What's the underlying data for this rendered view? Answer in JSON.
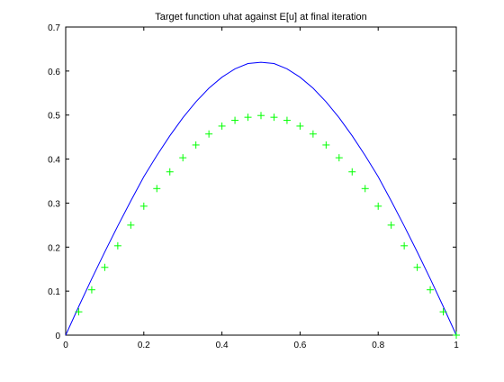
{
  "chart_data": {
    "type": "line",
    "title": "Target function uhat against E[u] at final iteration",
    "xlabel": "",
    "ylabel": "",
    "xlim": [
      0,
      1
    ],
    "ylim": [
      0,
      0.7
    ],
    "x_ticks": [
      0,
      0.2,
      0.4,
      0.6,
      0.8,
      1
    ],
    "x_tick_labels": [
      "0",
      "0.2",
      "0.4",
      "0.6",
      "0.8",
      "1"
    ],
    "y_ticks": [
      0,
      0.1,
      0.2,
      0.3,
      0.4,
      0.5,
      0.6,
      0.7
    ],
    "y_tick_labels": [
      "0",
      "0.1",
      "0.2",
      "0.3",
      "0.4",
      "0.5",
      "0.6",
      "0.7"
    ],
    "grid": false,
    "legend": "none",
    "series": [
      {
        "style": "line",
        "color": "#0000ff",
        "x": [
          0,
          0.03333,
          0.06667,
          0.1,
          0.13333,
          0.16667,
          0.2,
          0.23333,
          0.26667,
          0.3,
          0.33333,
          0.36667,
          0.4,
          0.43333,
          0.46667,
          0.5,
          0.53333,
          0.56667,
          0.6,
          0.63333,
          0.66667,
          0.7,
          0.73333,
          0.76667,
          0.8,
          0.83333,
          0.86667,
          0.9,
          0.93333,
          0.96667,
          1
        ],
        "y": [
          0,
          0.065,
          0.128,
          0.189,
          0.248,
          0.305,
          0.36,
          0.408,
          0.453,
          0.494,
          0.53,
          0.561,
          0.586,
          0.605,
          0.617,
          0.62,
          0.617,
          0.605,
          0.586,
          0.561,
          0.53,
          0.494,
          0.453,
          0.408,
          0.36,
          0.305,
          0.248,
          0.189,
          0.128,
          0.065,
          0
        ]
      },
      {
        "style": "markers",
        "marker": "+",
        "color": "#00ff00",
        "x": [
          0.03333,
          0.06667,
          0.1,
          0.13333,
          0.16667,
          0.2,
          0.23333,
          0.26667,
          0.3,
          0.33333,
          0.36667,
          0.4,
          0.43333,
          0.46667,
          0.5,
          0.53333,
          0.56667,
          0.6,
          0.63333,
          0.66667,
          0.7,
          0.73333,
          0.76667,
          0.8,
          0.83333,
          0.86667,
          0.9,
          0.93333,
          0.96667,
          1
        ],
        "y": [
          0.053,
          0.103,
          0.154,
          0.203,
          0.25,
          0.293,
          0.333,
          0.371,
          0.403,
          0.432,
          0.457,
          0.475,
          0.488,
          0.495,
          0.499,
          0.495,
          0.488,
          0.475,
          0.457,
          0.432,
          0.403,
          0.371,
          0.333,
          0.293,
          0.25,
          0.203,
          0.154,
          0.103,
          0.053,
          0
        ]
      }
    ]
  }
}
